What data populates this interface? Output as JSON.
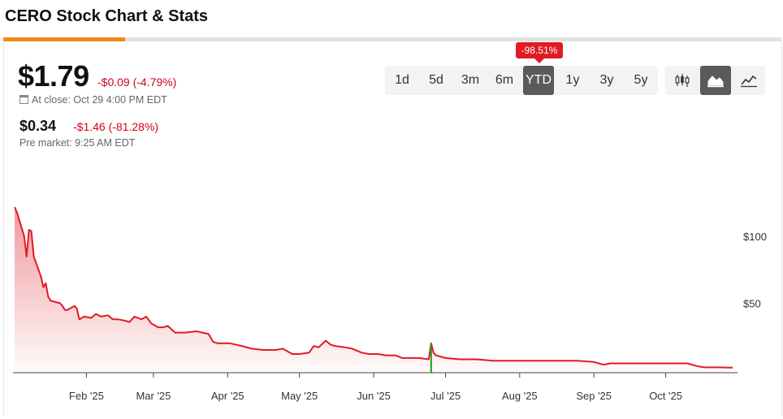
{
  "header": {
    "title": "CERO Stock Chart & Stats"
  },
  "quote": {
    "price": "$1.79",
    "change": "-$0.09 (-4.79%)",
    "close_text": "At close: Oct 29 4:00 PM EDT",
    "pre_price": "$0.34",
    "pre_change": "-$1.46 (-81.28%)",
    "pre_text": "Pre market: 9:25 AM EDT"
  },
  "ranges": {
    "items": [
      "1d",
      "5d",
      "3m",
      "6m",
      "YTD",
      "1y",
      "3y",
      "5y"
    ],
    "selected": "YTD",
    "ytd_badge": "-98.51%"
  },
  "chart_types": {
    "items": [
      "candlestick-icon",
      "area-chart-icon",
      "line-chart-icon"
    ],
    "selected": "area-chart-icon"
  },
  "colors": {
    "line": "#e01b22",
    "accent": "#f08a1c",
    "badge": "#e01b22",
    "spike": "#1a9b1a"
  },
  "chart_data": {
    "type": "area",
    "title": "",
    "xlabel": "",
    "ylabel": "",
    "ylim": [
      -2,
      122
    ],
    "y_ticks": [
      {
        "label": "$100",
        "value": 100
      },
      {
        "label": "$50",
        "value": 50
      }
    ],
    "x_ticks": [
      {
        "label": "Feb '25",
        "value": "2025-02-01"
      },
      {
        "label": "Mar '25",
        "value": "2025-03-01"
      },
      {
        "label": "Apr '25",
        "value": "2025-04-01"
      },
      {
        "label": "May '25",
        "value": "2025-05-01"
      },
      {
        "label": "Jun '25",
        "value": "2025-06-01"
      },
      {
        "label": "Jul '25",
        "value": "2025-07-01"
      },
      {
        "label": "Aug '25",
        "value": "2025-08-01"
      },
      {
        "label": "Sep '25",
        "value": "2025-09-01"
      },
      {
        "label": "Oct '25",
        "value": "2025-10-01"
      }
    ],
    "xlim": [
      "2025-01-02",
      "2025-10-31"
    ],
    "series": [
      {
        "values": [
          [
            "2025-01-02",
            122
          ],
          [
            "2025-01-03",
            118
          ],
          [
            "2025-01-06",
            100
          ],
          [
            "2025-01-07",
            85
          ],
          [
            "2025-01-08",
            105
          ],
          [
            "2025-01-09",
            104
          ],
          [
            "2025-01-10",
            85
          ],
          [
            "2025-01-13",
            70
          ],
          [
            "2025-01-14",
            62
          ],
          [
            "2025-01-15",
            65
          ],
          [
            "2025-01-16",
            55
          ],
          [
            "2025-01-17",
            52
          ],
          [
            "2025-01-21",
            50
          ],
          [
            "2025-01-22",
            48
          ],
          [
            "2025-01-23",
            45
          ],
          [
            "2025-01-24",
            45
          ],
          [
            "2025-01-27",
            48
          ],
          [
            "2025-01-28",
            46
          ],
          [
            "2025-01-29",
            38
          ],
          [
            "2025-01-31",
            40
          ],
          [
            "2025-02-03",
            39
          ],
          [
            "2025-02-05",
            42
          ],
          [
            "2025-02-07",
            40
          ],
          [
            "2025-02-10",
            41
          ],
          [
            "2025-02-12",
            38
          ],
          [
            "2025-02-14",
            38
          ],
          [
            "2025-02-17",
            37
          ],
          [
            "2025-02-19",
            36
          ],
          [
            "2025-02-21",
            40
          ],
          [
            "2025-02-24",
            38
          ],
          [
            "2025-02-26",
            40
          ],
          [
            "2025-02-28",
            35
          ],
          [
            "2025-03-03",
            32
          ],
          [
            "2025-03-05",
            32
          ],
          [
            "2025-03-07",
            33
          ],
          [
            "2025-03-10",
            28
          ],
          [
            "2025-03-14",
            28
          ],
          [
            "2025-03-19",
            29
          ],
          [
            "2025-03-24",
            27
          ],
          [
            "2025-03-26",
            21
          ],
          [
            "2025-03-28",
            20
          ],
          [
            "2025-04-02",
            20
          ],
          [
            "2025-04-07",
            18
          ],
          [
            "2025-04-11",
            16
          ],
          [
            "2025-04-16",
            15
          ],
          [
            "2025-04-21",
            15
          ],
          [
            "2025-04-24",
            16
          ],
          [
            "2025-04-28",
            12
          ],
          [
            "2025-05-01",
            12
          ],
          [
            "2025-05-05",
            13
          ],
          [
            "2025-05-07",
            18
          ],
          [
            "2025-05-09",
            17
          ],
          [
            "2025-05-12",
            22
          ],
          [
            "2025-05-14",
            19
          ],
          [
            "2025-05-16",
            18
          ],
          [
            "2025-05-20",
            17
          ],
          [
            "2025-05-23",
            16
          ],
          [
            "2025-05-27",
            13
          ],
          [
            "2025-05-30",
            12
          ],
          [
            "2025-06-03",
            12
          ],
          [
            "2025-06-06",
            11
          ],
          [
            "2025-06-10",
            11
          ],
          [
            "2025-06-13",
            9
          ],
          [
            "2025-06-17",
            9
          ],
          [
            "2025-06-20",
            9
          ],
          [
            "2025-06-24",
            8
          ],
          [
            "2025-06-25",
            20
          ],
          [
            "2025-06-26",
            13
          ],
          [
            "2025-06-27",
            11
          ],
          [
            "2025-07-01",
            9
          ],
          [
            "2025-07-07",
            8
          ],
          [
            "2025-07-14",
            8
          ],
          [
            "2025-07-21",
            7
          ],
          [
            "2025-07-28",
            7
          ],
          [
            "2025-08-04",
            7
          ],
          [
            "2025-08-11",
            7
          ],
          [
            "2025-08-18",
            7
          ],
          [
            "2025-08-25",
            7
          ],
          [
            "2025-09-01",
            6
          ],
          [
            "2025-09-05",
            4
          ],
          [
            "2025-09-08",
            5
          ],
          [
            "2025-09-15",
            5
          ],
          [
            "2025-09-22",
            5
          ],
          [
            "2025-09-29",
            5
          ],
          [
            "2025-10-06",
            5
          ],
          [
            "2025-10-10",
            5
          ],
          [
            "2025-10-14",
            3
          ],
          [
            "2025-10-17",
            2
          ],
          [
            "2025-10-21",
            2
          ],
          [
            "2025-10-24",
            2
          ],
          [
            "2025-10-29",
            1.79
          ]
        ]
      }
    ],
    "spike": {
      "date": "2025-06-25",
      "low": -2,
      "high": 20
    },
    "grid": false,
    "legend": "none"
  }
}
